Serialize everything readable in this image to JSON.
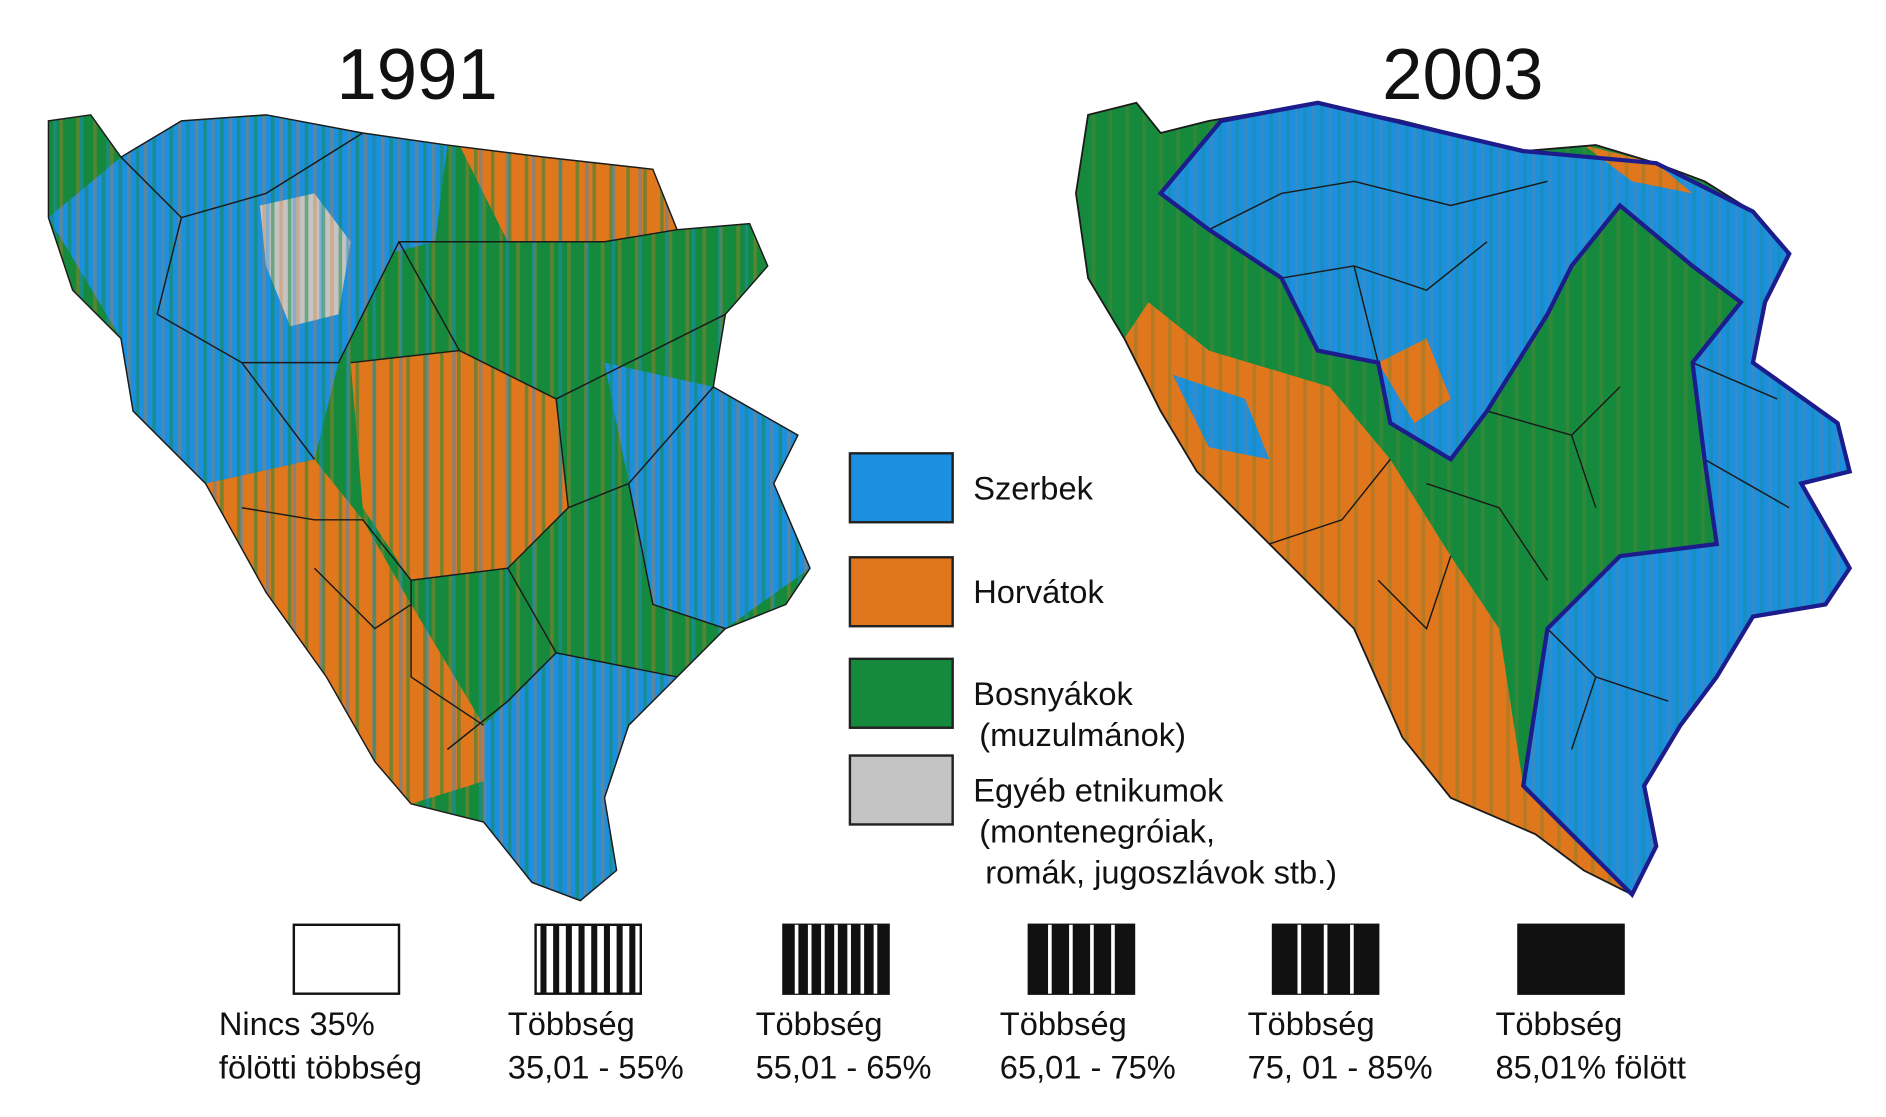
{
  "maps": [
    {
      "title": "1991"
    },
    {
      "title": "2003"
    }
  ],
  "legend": {
    "ethnic": [
      {
        "lines": [
          "Szerbek"
        ],
        "color": "#1b8fe0"
      },
      {
        "lines": [
          "Horvátok"
        ],
        "color": "#e0771d"
      },
      {
        "lines": [
          "Bosnyákok",
          "(muzulmánok)"
        ],
        "color": "#168a3c"
      },
      {
        "lines": [
          "Egyéb etnikumok",
          "(montenegróiak,",
          "romák, jugoszlávok stb.)"
        ],
        "color": "#c4c4c4"
      }
    ],
    "majority": [
      {
        "lines": [
          "Nincs 35%",
          "fölötti többség"
        ]
      },
      {
        "lines": [
          "Többség",
          "35,01 - 55%"
        ]
      },
      {
        "lines": [
          "Többség",
          "55,01 - 65%"
        ]
      },
      {
        "lines": [
          "Többség",
          "65,01 - 75%"
        ]
      },
      {
        "lines": [
          "Többség",
          "75, 01 - 85%"
        ]
      },
      {
        "lines": [
          "Többség",
          "85,01% fölött"
        ]
      }
    ]
  }
}
